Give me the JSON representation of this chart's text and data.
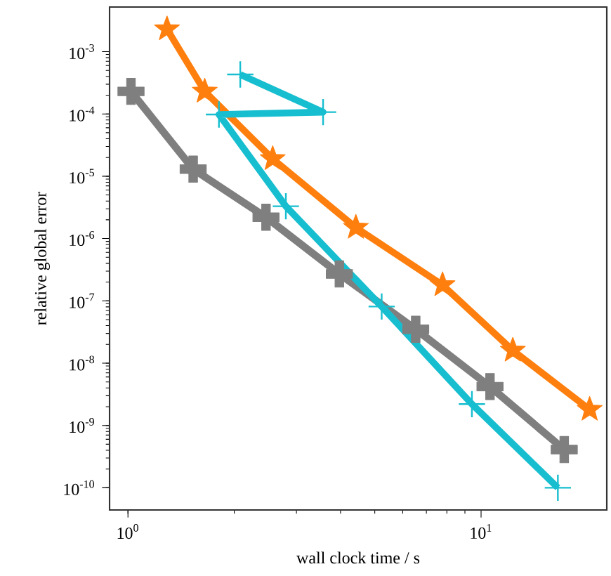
{
  "chart_data": {
    "type": "line",
    "xlabel": "wall clock time / s",
    "ylabel": "relative global error",
    "log": "xy",
    "grid": false,
    "legend": false,
    "line_style": "solid",
    "xlim": [
      0.887,
      22.7
    ],
    "ylim": [
      4.4e-11,
      0.0052
    ],
    "xticks": [
      {
        "value": 1,
        "label": "10$^{0}$"
      },
      {
        "value": 10,
        "label": "10$^{1}$"
      }
    ],
    "yticks": [
      {
        "value": 1e-10,
        "label": "10$^{-10}$"
      },
      {
        "value": 1e-09,
        "label": "10$^{-9}$"
      },
      {
        "value": 1e-08,
        "label": "10$^{-8}$"
      },
      {
        "value": 1e-07,
        "label": "10$^{-7}$"
      },
      {
        "value": 1e-06,
        "label": "10$^{-6}$"
      },
      {
        "value": 1e-05,
        "label": "10$^{-5}$"
      },
      {
        "value": 0.0001,
        "label": "10$^{-4}$"
      },
      {
        "value": 0.001,
        "label": "10$^{-3}$"
      }
    ],
    "series": [
      {
        "color": "#7f7f7f",
        "marker": "cross",
        "x": [
          1.02,
          1.53,
          2.46,
          3.97,
          6.53,
          10.6,
          17.2
        ],
        "values": [
          0.00023,
          1.3e-05,
          2.2e-06,
          2.7e-07,
          3.5e-08,
          4.2e-09,
          4.1e-10
        ]
      },
      {
        "color": "#ff7f0e",
        "marker": "star",
        "x": [
          1.29,
          1.65,
          2.57,
          4.42,
          7.78,
          12.3,
          20.3
        ],
        "values": [
          0.0023,
          0.00023,
          1.9e-05,
          1.5e-06,
          1.8e-07,
          1.6e-08,
          1.8e-09
        ]
      },
      {
        "color": "#17becf",
        "marker": "cross",
        "x": [
          2.08,
          3.57,
          1.81,
          2.8,
          5.23,
          9.42,
          16.5
        ],
        "values": [
          0.00043,
          0.000107,
          9.8e-05,
          3.3e-06,
          8.1e-08,
          2.2e-09,
          1e-10
        ]
      }
    ]
  }
}
